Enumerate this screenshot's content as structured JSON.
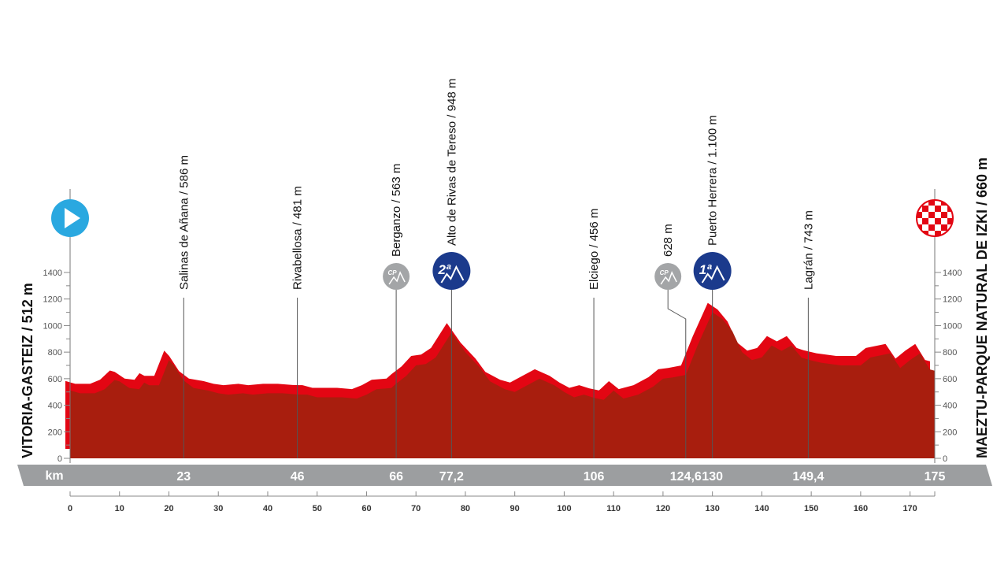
{
  "chart_data": {
    "type": "area",
    "title": "",
    "xlabel": "km",
    "ylabel": "",
    "xlim": [
      0,
      175
    ],
    "ylim": [
      0,
      1400
    ],
    "x_ticks": [
      0,
      10,
      20,
      30,
      40,
      50,
      60,
      70,
      80,
      90,
      100,
      110,
      120,
      130,
      140,
      150,
      160,
      170
    ],
    "y_ticks": [
      0,
      200,
      400,
      600,
      800,
      1000,
      1200,
      1400
    ],
    "grid": false,
    "start_label": "VITORIA-GASTEIZ / 512 m",
    "finish_label": "MAEZTU-PARQUE NATURAL DE IZKI / 660 m",
    "band_km_label": "km",
    "profile": [
      [
        0,
        512
      ],
      [
        2,
        490
      ],
      [
        5,
        490
      ],
      [
        7,
        520
      ],
      [
        9,
        590
      ],
      [
        10,
        580
      ],
      [
        12,
        530
      ],
      [
        14,
        520
      ],
      [
        15,
        570
      ],
      [
        16,
        550
      ],
      [
        18,
        550
      ],
      [
        20,
        740
      ],
      [
        21,
        700
      ],
      [
        23,
        586
      ],
      [
        25,
        530
      ],
      [
        28,
        510
      ],
      [
        30,
        490
      ],
      [
        32,
        480
      ],
      [
        35,
        490
      ],
      [
        37,
        480
      ],
      [
        40,
        490
      ],
      [
        43,
        490
      ],
      [
        46,
        481
      ],
      [
        48,
        480
      ],
      [
        50,
        460
      ],
      [
        55,
        460
      ],
      [
        58,
        450
      ],
      [
        60,
        480
      ],
      [
        62,
        520
      ],
      [
        65,
        530
      ],
      [
        66,
        563
      ],
      [
        68,
        620
      ],
      [
        70,
        700
      ],
      [
        72,
        710
      ],
      [
        74,
        760
      ],
      [
        77.2,
        948
      ],
      [
        80,
        800
      ],
      [
        83,
        680
      ],
      [
        85,
        580
      ],
      [
        88,
        520
      ],
      [
        90,
        500
      ],
      [
        92,
        540
      ],
      [
        95,
        600
      ],
      [
        98,
        550
      ],
      [
        100,
        500
      ],
      [
        102,
        460
      ],
      [
        104,
        480
      ],
      [
        106,
        456
      ],
      [
        108,
        440
      ],
      [
        110,
        510
      ],
      [
        112,
        450
      ],
      [
        115,
        480
      ],
      [
        118,
        540
      ],
      [
        120,
        600
      ],
      [
        122,
        610
      ],
      [
        124.6,
        628
      ],
      [
        127,
        850
      ],
      [
        130,
        1100
      ],
      [
        132,
        1050
      ],
      [
        134,
        960
      ],
      [
        136,
        800
      ],
      [
        138,
        740
      ],
      [
        140,
        760
      ],
      [
        142,
        850
      ],
      [
        144,
        810
      ],
      [
        146,
        850
      ],
      [
        148,
        760
      ],
      [
        149.4,
        743
      ],
      [
        152,
        720
      ],
      [
        156,
        700
      ],
      [
        160,
        700
      ],
      [
        162,
        760
      ],
      [
        166,
        790
      ],
      [
        168,
        680
      ],
      [
        170,
        740
      ],
      [
        172,
        790
      ],
      [
        174,
        670
      ],
      [
        175,
        660
      ]
    ],
    "points": [
      {
        "km": 23,
        "km_label": "23",
        "label": "Salinas de Añana / 586 m"
      },
      {
        "km": 46,
        "km_label": "46",
        "label": "Rivabellosa / 481 m"
      },
      {
        "km": 66,
        "km_label": "66",
        "label": "Berganzo / 563 m",
        "badge": "CP"
      },
      {
        "km": 77.2,
        "km_label": "77,2",
        "label": "Alto de Rivas de Tereso / 948 m",
        "badge": "2ª"
      },
      {
        "km": 106,
        "km_label": "106",
        "label": "Elciego / 456 m"
      },
      {
        "km": 124.6,
        "km_label": "124,6",
        "label": "628 m",
        "badge": "CP"
      },
      {
        "km": 130,
        "km_label": "130",
        "label": "Puerto Herrera / 1.100 m",
        "badge": "1ª"
      },
      {
        "km": 149.4,
        "km_label": "149,4",
        "label": "Lagrán / 743 m"
      },
      {
        "km": 175,
        "km_label": "175",
        "label": ""
      }
    ],
    "colors": {
      "profile_front": "#a81e0e",
      "profile_top": "#e30613",
      "band": "#9c9ea0",
      "start_icon": "#2aa8e0",
      "climb_badge": "#1b3a8c",
      "cp_badge": "#a3a5a7"
    },
    "icons": {
      "start": "play-icon",
      "finish": "checkered-flag-icon",
      "climb": "mountain-icon",
      "sprint": "cp-icon"
    }
  }
}
